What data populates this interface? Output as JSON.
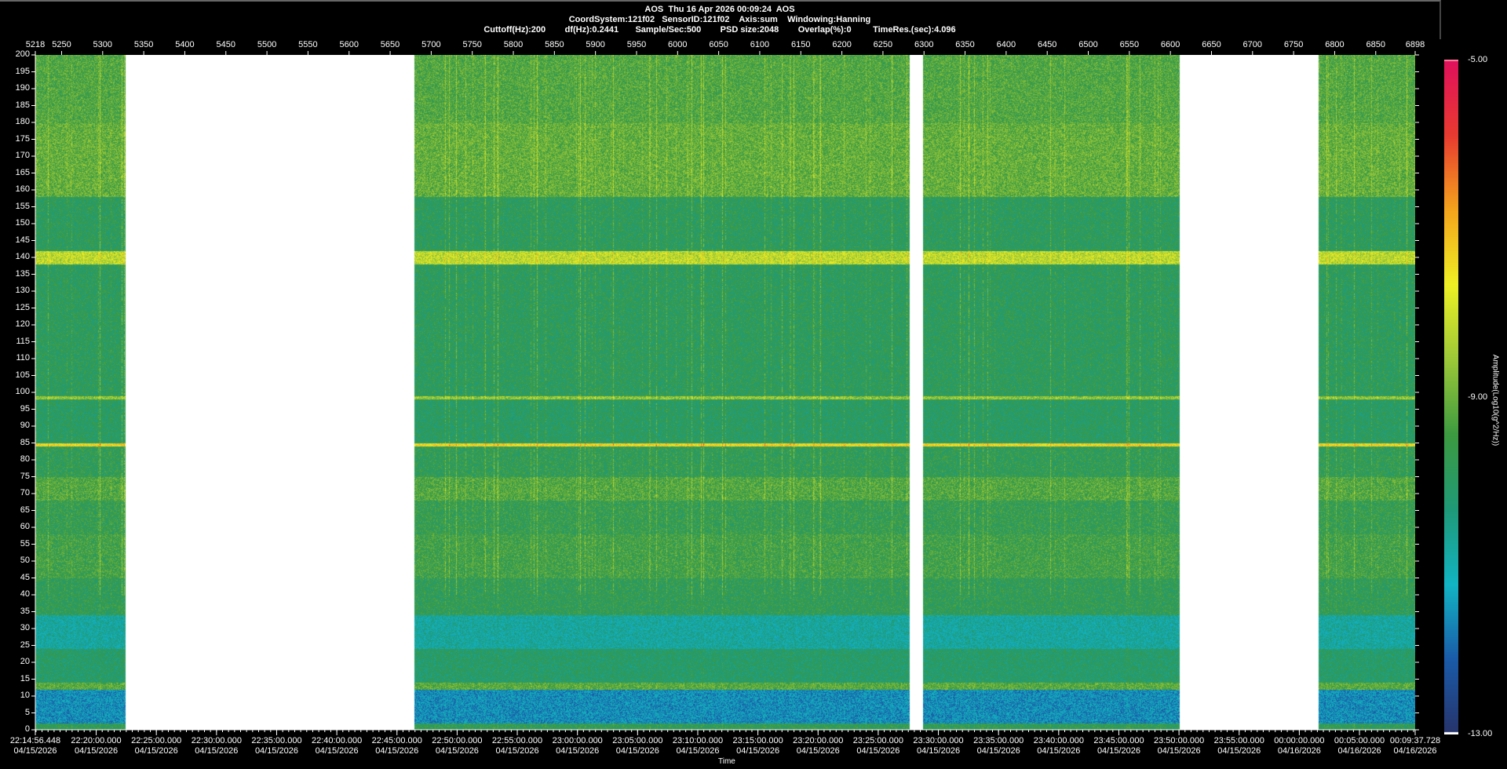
{
  "header": {
    "title": "AOS  Thu 16 Apr 2026 00:09:24  AOS",
    "line2": "CoordSystem:121f02   SensorID:121f02    Axis:sum    Windowing:Hanning",
    "line3": "Cuttoff(Hz):200        df(Hz):0.2441       Sample/Sec:500        PSD size:2048        Overlap(%):0         TimeRes.(sec):4.096"
  },
  "chart_data": {
    "type": "heatmap",
    "title": "",
    "xlabel": "Time",
    "ylabel": "",
    "ylim": [
      0,
      200
    ],
    "y_ticks": [
      0,
      5,
      10,
      15,
      20,
      25,
      30,
      35,
      40,
      45,
      50,
      55,
      60,
      65,
      70,
      75,
      80,
      85,
      90,
      95,
      100,
      105,
      110,
      115,
      120,
      125,
      130,
      135,
      140,
      145,
      150,
      155,
      160,
      165,
      170,
      175,
      180,
      185,
      190,
      195,
      200
    ],
    "top_axis": {
      "range": [
        5218,
        6898
      ],
      "ticks": [
        "5218",
        "5250",
        "5300",
        "5350",
        "5400",
        "5450",
        "5500",
        "5550",
        "5600",
        "5650",
        "5700",
        "5750",
        "5800",
        "5850",
        "5900",
        "5950",
        "6000",
        "6050",
        "6100",
        "6150",
        "6200",
        "6250",
        "6300",
        "6350",
        "6400",
        "6450",
        "6500",
        "6550",
        "6600",
        "6650",
        "6700",
        "6750",
        "6800",
        "6850",
        "6898"
      ]
    },
    "time_ticks": [
      [
        "22:14:56.448",
        "04/15/2026"
      ],
      [
        "22:20:00.000",
        "04/15/2026"
      ],
      [
        "22:25:00.000",
        "04/15/2026"
      ],
      [
        "22:30:00.000",
        "04/15/2026"
      ],
      [
        "22:35:00.000",
        "04/15/2026"
      ],
      [
        "22:40:00.000",
        "04/15/2026"
      ],
      [
        "22:45:00.000",
        "04/15/2026"
      ],
      [
        "22:50:00.000",
        "04/15/2026"
      ],
      [
        "22:55:00.000",
        "04/15/2026"
      ],
      [
        "23:00:00.000",
        "04/15/2026"
      ],
      [
        "23:05:00.000",
        "04/15/2026"
      ],
      [
        "23:10:00.000",
        "04/15/2026"
      ],
      [
        "23:15:00.000",
        "04/15/2026"
      ],
      [
        "23:20:00.000",
        "04/15/2026"
      ],
      [
        "23:25:00.000",
        "04/15/2026"
      ],
      [
        "23:30:00.000",
        "04/15/2026"
      ],
      [
        "23:35:00.000",
        "04/15/2026"
      ],
      [
        "23:40:00.000",
        "04/15/2026"
      ],
      [
        "23:45:00.000",
        "04/15/2026"
      ],
      [
        "23:50:00.000",
        "04/15/2026"
      ],
      [
        "23:55:00.000",
        "04/15/2026"
      ],
      [
        "00:00:00.000",
        "04/16/2026"
      ],
      [
        "00:05:00.000",
        "04/16/2026"
      ],
      [
        "00:09:37.728",
        "04/16/2026"
      ]
    ],
    "data_gaps": [
      [
        5327,
        5679
      ],
      [
        6282,
        6298
      ],
      [
        6611,
        6780
      ]
    ],
    "mean_amplitude_profile": [
      [
        0,
        -9.8
      ],
      [
        2,
        -11.6
      ],
      [
        12,
        -9.2
      ],
      [
        14,
        -10.1
      ],
      [
        24,
        -10.8
      ],
      [
        34,
        -9.8
      ],
      [
        45,
        -9.5
      ],
      [
        58,
        -9.7
      ],
      [
        68,
        -9.3
      ],
      [
        75,
        -9.8
      ],
      [
        84,
        -7.4
      ],
      [
        85,
        -10
      ],
      [
        98,
        -8.6
      ],
      [
        99,
        -9.9
      ],
      [
        138,
        -8.2
      ],
      [
        142,
        -9.9
      ],
      [
        158,
        -9.1
      ],
      [
        180,
        -9.3
      ],
      [
        200,
        -9.3
      ]
    ],
    "colorbar": {
      "label": "Amplitude(Log10(g^2/Hz))",
      "min": -13,
      "max": -5,
      "tick_labels": [
        "-5.00",
        "-9.00",
        "-13.00"
      ],
      "colors": [
        "#27336a",
        "#1a5aa8",
        "#12b4c4",
        "#1f9a78",
        "#3c9a40",
        "#9cc838",
        "#eef024",
        "#f4a41c",
        "#e83a30",
        "#e0105c"
      ]
    }
  }
}
